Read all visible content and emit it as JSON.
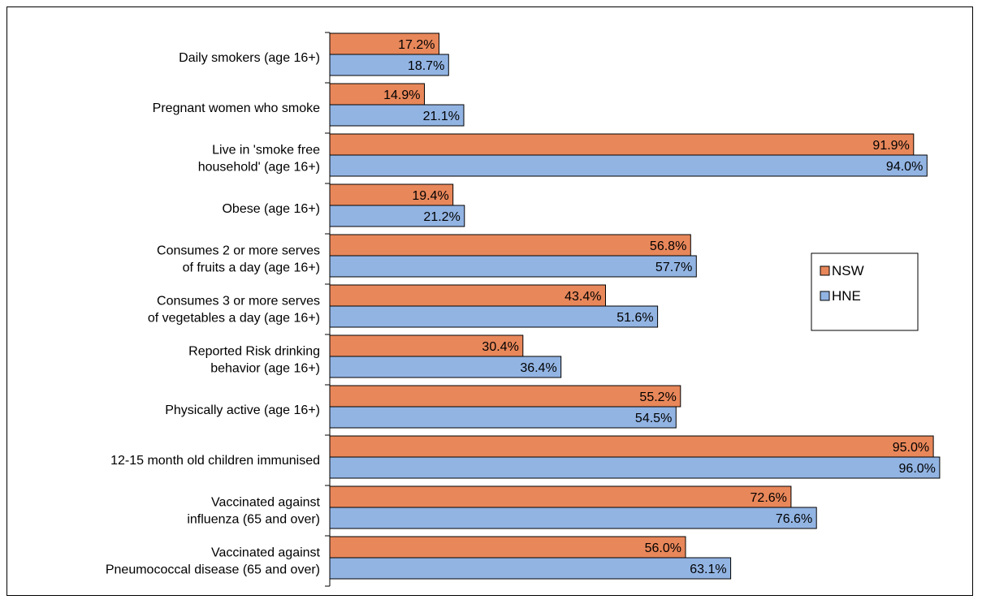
{
  "chart_data": {
    "type": "bar",
    "orientation": "horizontal",
    "xlim": [
      0,
      100
    ],
    "grid": false,
    "legend_position": "right",
    "categories": [
      [
        "Daily smokers (age 16+)"
      ],
      [
        "Pregnant women who smoke"
      ],
      [
        "Live in 'smoke free",
        "household' (age 16+)"
      ],
      [
        "Obese (age 16+)"
      ],
      [
        "Consumes 2 or more serves",
        "of fruits a day (age 16+)"
      ],
      [
        "Consumes 3 or more serves",
        "of vegetables a day (age 16+)"
      ],
      [
        "Reported Risk drinking",
        "behavior (age 16+)"
      ],
      [
        "Physically active (age 16+)"
      ],
      [
        "12-15 month old children immunised"
      ],
      [
        "Vaccinated against",
        "influenza (65 and over)"
      ],
      [
        "Vaccinated against",
        "Pneumococcal disease (65 and over)"
      ]
    ],
    "series": [
      {
        "name": "NSW",
        "color": "#E8875A",
        "values": [
          17.2,
          14.9,
          91.9,
          19.4,
          56.8,
          43.4,
          30.4,
          55.2,
          95.0,
          72.6,
          56.0
        ],
        "labels": [
          "17.2%",
          "14.9%",
          "91.9%",
          "19.4%",
          "56.8%",
          "43.4%",
          "30.4%",
          "55.2%",
          "95.0%",
          "72.6%",
          "56.0%"
        ]
      },
      {
        "name": "HNE",
        "color": "#92B4E3",
        "values": [
          18.7,
          21.1,
          94.0,
          21.2,
          57.7,
          51.6,
          36.4,
          54.5,
          96.0,
          76.6,
          63.1
        ],
        "labels": [
          "18.7%",
          "21.1%",
          "94.0%",
          "21.2%",
          "57.7%",
          "51.6%",
          "36.4%",
          "54.5%",
          "96.0%",
          "76.6%",
          "63.1%"
        ]
      }
    ]
  }
}
